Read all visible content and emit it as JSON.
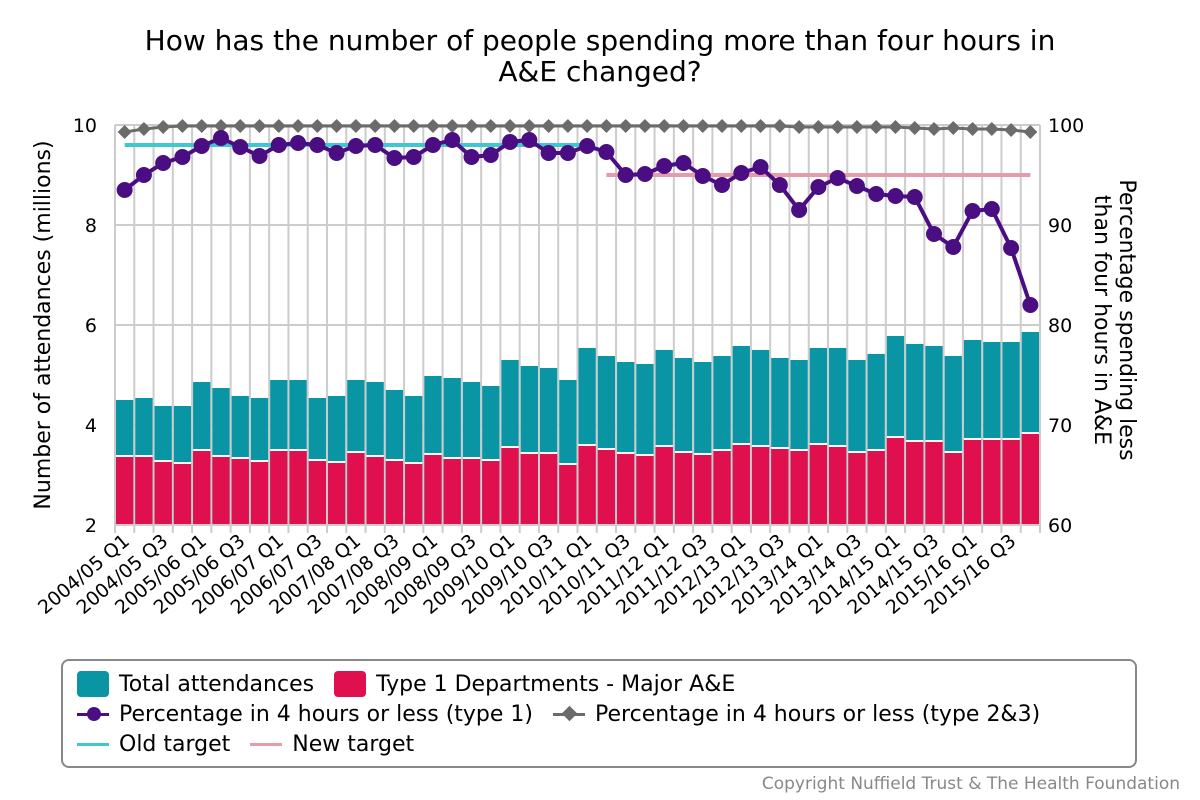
{
  "chart_data": {
    "type": "bar",
    "title_lines": [
      "How has the number of people spending more than four hours in",
      "A&E changed?"
    ],
    "ylabel": "Number of attendances (millions)",
    "y2label_lines": [
      "Percentage spending less",
      "than four hours in A&E"
    ],
    "ylim": [
      2,
      10
    ],
    "yticks": [
      2,
      4,
      6,
      8,
      10
    ],
    "y2lim": [
      60,
      100
    ],
    "y2ticks": [
      60,
      70,
      80,
      90,
      100
    ],
    "grid": true,
    "legend_position": "bottom",
    "categories": [
      "2004/05 Q1",
      "2004/05 Q2",
      "2004/05 Q3",
      "2004/05 Q4",
      "2005/06 Q1",
      "2005/06 Q2",
      "2005/06 Q3",
      "2005/06 Q4",
      "2006/07 Q1",
      "2006/07 Q2",
      "2006/07 Q3",
      "2006/07 Q4",
      "2007/08 Q1",
      "2007/08 Q2",
      "2007/08 Q3",
      "2007/08 Q4",
      "2008/09 Q1",
      "2008/09 Q2",
      "2008/09 Q3",
      "2008/09 Q4",
      "2009/10 Q1",
      "2009/10 Q2",
      "2009/10 Q3",
      "2009/10 Q4",
      "2010/11 Q1",
      "2010/11 Q2",
      "2010/11 Q3",
      "2010/11 Q4",
      "2011/12 Q1",
      "2011/12 Q2",
      "2011/12 Q3",
      "2011/12 Q4",
      "2012/13 Q1",
      "2012/13 Q2",
      "2012/13 Q3",
      "2012/13 Q4",
      "2013/14 Q1",
      "2013/14 Q2",
      "2013/14 Q3",
      "2013/14 Q4",
      "2014/15 Q1",
      "2014/15 Q2",
      "2014/15 Q3",
      "2014/15 Q4",
      "2015/16 Q1",
      "2015/16 Q2",
      "2015/16 Q3",
      "2015/16 Q4"
    ],
    "xtick_labels": [
      "2004/05 Q1",
      "2004/05 Q3",
      "2005/06 Q1",
      "2005/06 Q3",
      "2006/07 Q1",
      "2006/07 Q3",
      "2007/08 Q1",
      "2007/08 Q3",
      "2008/09 Q1",
      "2008/09 Q3",
      "2009/10 Q1",
      "2009/10 Q3",
      "2010/11 Q1",
      "2010/11 Q3",
      "2011/12 Q1",
      "2011/12 Q3",
      "2012/13 Q1",
      "2012/13 Q3",
      "2013/14 Q1",
      "2013/14 Q3",
      "2014/15 Q1",
      "2014/15 Q3",
      "2015/16 Q1",
      "2015/16 Q3"
    ],
    "series": [
      {
        "name": "Total attendances",
        "kind": "bar",
        "axis": "left",
        "color": "#0a95a5",
        "values": [
          4.5,
          4.54,
          4.38,
          4.38,
          4.86,
          4.74,
          4.58,
          4.54,
          4.9,
          4.9,
          4.54,
          4.58,
          4.9,
          4.86,
          4.7,
          4.58,
          4.98,
          4.94,
          4.86,
          4.78,
          5.3,
          5.18,
          5.14,
          4.9,
          5.54,
          5.38,
          5.26,
          5.22,
          5.5,
          5.34,
          5.26,
          5.38,
          5.58,
          5.5,
          5.34,
          5.3,
          5.54,
          5.54,
          5.3,
          5.42,
          5.78,
          5.62,
          5.58,
          5.38,
          5.7,
          5.66,
          5.66,
          5.86
        ]
      },
      {
        "name": "Type 1 Departments - Major A&E",
        "kind": "bar",
        "axis": "left",
        "color": "#e0104e",
        "values": [
          3.38,
          3.38,
          3.28,
          3.24,
          3.5,
          3.38,
          3.34,
          3.28,
          3.5,
          3.5,
          3.3,
          3.26,
          3.46,
          3.38,
          3.3,
          3.24,
          3.42,
          3.34,
          3.34,
          3.3,
          3.56,
          3.44,
          3.44,
          3.22,
          3.6,
          3.52,
          3.44,
          3.4,
          3.58,
          3.46,
          3.42,
          3.5,
          3.62,
          3.58,
          3.54,
          3.5,
          3.62,
          3.58,
          3.46,
          3.5,
          3.76,
          3.68,
          3.68,
          3.46,
          3.72,
          3.72,
          3.72,
          3.84
        ]
      },
      {
        "name": "Percentage in 4 hours or less (type 1)",
        "kind": "line-circle",
        "axis": "right",
        "color": "#4b0e82",
        "values": [
          93.5,
          95.0,
          96.2,
          96.8,
          97.9,
          98.7,
          97.8,
          96.9,
          98.0,
          98.2,
          98.0,
          97.2,
          97.9,
          98.0,
          96.7,
          96.8,
          98.0,
          98.5,
          96.8,
          97.0,
          98.3,
          98.5,
          97.2,
          97.2,
          97.9,
          97.3,
          95.0,
          95.1,
          95.9,
          96.2,
          94.9,
          94.0,
          95.2,
          95.8,
          94.0,
          91.5,
          93.8,
          94.7,
          93.9,
          93.1,
          92.9,
          92.8,
          89.1,
          87.8,
          91.4,
          91.6,
          87.7,
          82.0
        ]
      },
      {
        "name": "Percentage in 4 hours or less (type 2&3)",
        "kind": "line-diamond",
        "axis": "right",
        "color": "#6b6b6b",
        "values": [
          99.3,
          99.6,
          99.8,
          99.9,
          99.9,
          99.9,
          99.9,
          99.9,
          99.9,
          99.9,
          99.9,
          99.9,
          99.9,
          99.9,
          99.9,
          99.9,
          99.9,
          99.9,
          99.9,
          99.9,
          99.9,
          99.9,
          99.9,
          99.9,
          99.9,
          99.9,
          99.9,
          99.9,
          99.9,
          99.9,
          99.9,
          99.9,
          99.9,
          99.9,
          99.9,
          99.8,
          99.8,
          99.8,
          99.8,
          99.8,
          99.8,
          99.7,
          99.6,
          99.7,
          99.6,
          99.6,
          99.5,
          99.3
        ]
      },
      {
        "name": "Old target",
        "kind": "target",
        "axis": "right",
        "color": "#3ec8d0",
        "value": 98,
        "from": "2004/05 Q1",
        "to": "2010/11 Q1"
      },
      {
        "name": "New target",
        "kind": "target",
        "axis": "right",
        "color": "#e89aab",
        "value": 95,
        "from": "2010/11 Q2",
        "to": "2015/16 Q4"
      }
    ]
  },
  "legend": {
    "items": [
      {
        "label": "Total attendances",
        "symbol": "swatch",
        "color": "#0a95a5"
      },
      {
        "label": "Type 1 Departments - Major A&E",
        "symbol": "swatch",
        "color": "#e0104e"
      },
      {
        "label": "Percentage in 4 hours or less (type 1)",
        "symbol": "line-circle",
        "color": "#4b0e82"
      },
      {
        "label": "Percentage in 4 hours or less (type 2&3)",
        "symbol": "line-diamond",
        "color": "#6b6b6b"
      },
      {
        "label": "Old target",
        "symbol": "line",
        "color": "#3ec8d0"
      },
      {
        "label": "New target",
        "symbol": "line",
        "color": "#e89aab"
      }
    ]
  },
  "footer": {
    "copyright": "Copyright Nuffield Trust & The Health Foundation"
  }
}
